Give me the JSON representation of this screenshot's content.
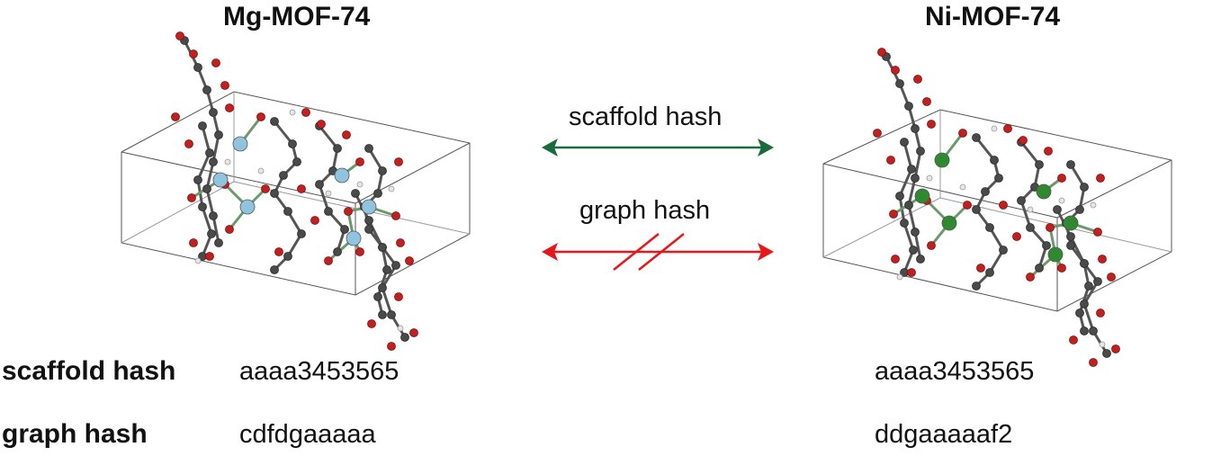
{
  "left": {
    "title": "Mg-MOF-74",
    "scaffold_hash": "aaaa3453565",
    "graph_hash": "cdfdgaaaaa",
    "metal_color": "#8fc3e0"
  },
  "right": {
    "title": "Ni-MOF-74",
    "scaffold_hash": "aaaa3453565",
    "graph_hash": "ddgaaaaaf2",
    "metal_color": "#2f8a2f"
  },
  "comparison": {
    "scaffold_label": "scaffold hash",
    "graph_label": "graph hash",
    "scaffold_arrow_color": "#1a6b3c",
    "graph_arrow_color": "#e8161b"
  },
  "row_labels": {
    "scaffold": "scaffold hash",
    "graph": "graph hash"
  }
}
